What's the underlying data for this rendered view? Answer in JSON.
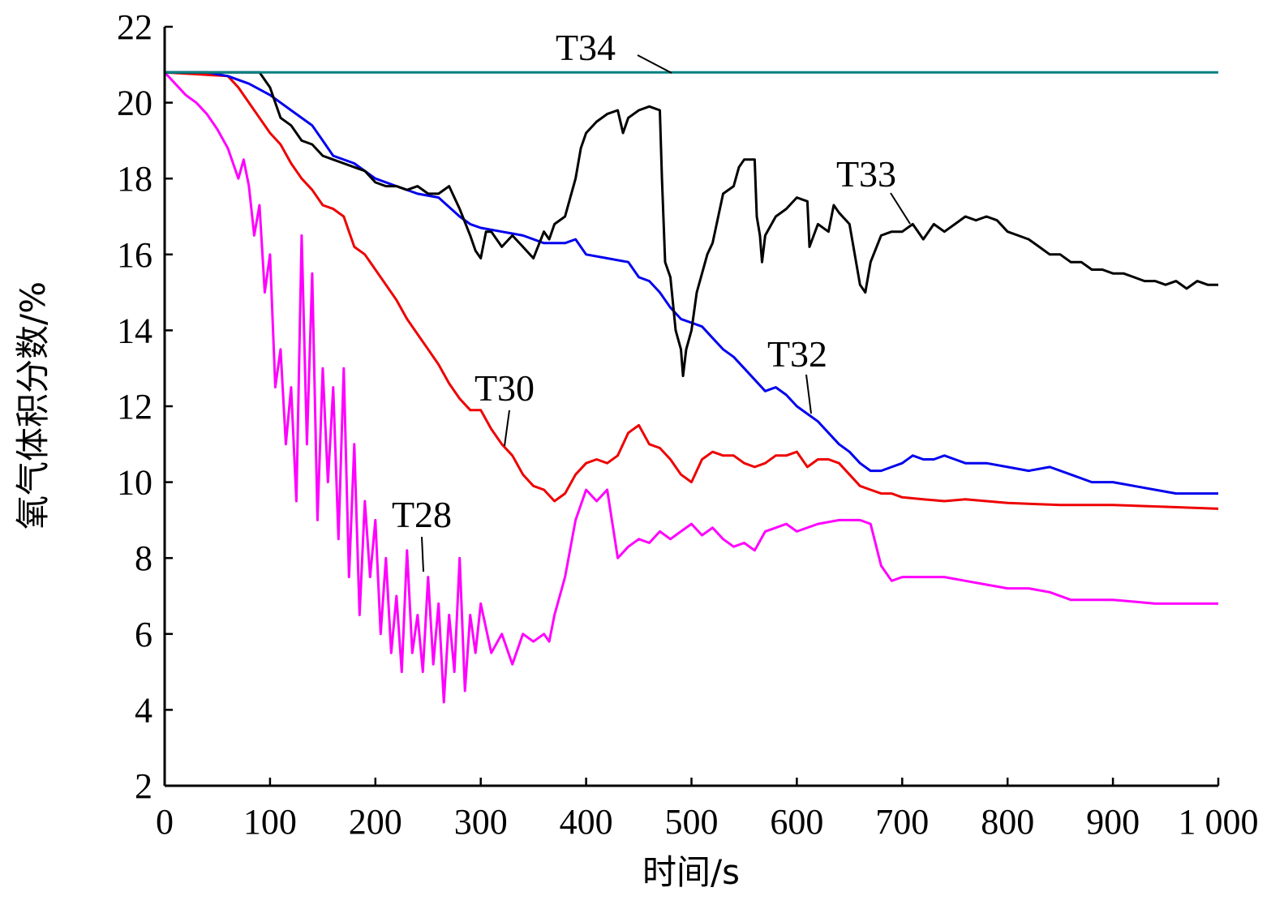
{
  "chart_data": {
    "type": "line",
    "title": "",
    "xlabel": "时间/s",
    "ylabel": "氧气体积分数/%",
    "xlim": [
      0,
      1000
    ],
    "ylim": [
      2,
      22
    ],
    "xticks": [
      0,
      100,
      200,
      300,
      400,
      500,
      600,
      700,
      800,
      900,
      1000
    ],
    "xtick_labels": [
      "0",
      "100",
      "200",
      "300",
      "400",
      "500",
      "600",
      "700",
      "800",
      "900",
      "1 000"
    ],
    "yticks": [
      2,
      4,
      6,
      8,
      10,
      12,
      14,
      16,
      18,
      20,
      22
    ],
    "ytick_labels": [
      "2",
      "4",
      "6",
      "8",
      "10",
      "12",
      "14",
      "16",
      "18",
      "20",
      "22"
    ],
    "grid": false,
    "legend": "none (inline labels)",
    "series": [
      {
        "name": "T34",
        "color": "#008080",
        "x": [
          0,
          1000
        ],
        "y": [
          20.8,
          20.8
        ]
      },
      {
        "name": "T33",
        "color": "#000000",
        "x": [
          0,
          90,
          100,
          110,
          120,
          130,
          140,
          150,
          160,
          170,
          180,
          190,
          200,
          210,
          220,
          230,
          240,
          250,
          260,
          270,
          280,
          290,
          295,
          300,
          305,
          310,
          320,
          330,
          340,
          350,
          360,
          365,
          370,
          380,
          390,
          395,
          400,
          410,
          420,
          430,
          435,
          440,
          450,
          460,
          470,
          472,
          475,
          480,
          485,
          490,
          492,
          495,
          500,
          505,
          510,
          515,
          520,
          530,
          540,
          545,
          550,
          560,
          562,
          565,
          567,
          570,
          580,
          590,
          600,
          610,
          612,
          620,
          630,
          635,
          640,
          650,
          655,
          660,
          665,
          670,
          680,
          690,
          700,
          710,
          720,
          730,
          740,
          750,
          760,
          770,
          780,
          790,
          800,
          810,
          820,
          830,
          840,
          850,
          860,
          870,
          880,
          890,
          900,
          910,
          920,
          930,
          940,
          950,
          960,
          970,
          980,
          990,
          1000
        ],
        "y": [
          20.8,
          20.8,
          20.4,
          19.6,
          19.4,
          19.0,
          18.9,
          18.6,
          18.5,
          18.4,
          18.3,
          18.2,
          17.9,
          17.8,
          17.8,
          17.7,
          17.8,
          17.6,
          17.6,
          17.8,
          17.2,
          16.5,
          16.1,
          15.9,
          16.6,
          16.6,
          16.2,
          16.5,
          16.2,
          15.9,
          16.6,
          16.4,
          16.8,
          17.0,
          18.0,
          18.8,
          19.2,
          19.5,
          19.7,
          19.8,
          19.2,
          19.6,
          19.8,
          19.9,
          19.8,
          18.0,
          15.8,
          15.4,
          14.0,
          13.5,
          12.8,
          13.5,
          14.0,
          15.0,
          15.5,
          16.0,
          16.3,
          17.6,
          17.8,
          18.3,
          18.5,
          18.5,
          17.0,
          16.5,
          15.8,
          16.5,
          17.0,
          17.2,
          17.5,
          17.4,
          16.2,
          16.8,
          16.6,
          17.3,
          17.1,
          16.8,
          16.0,
          15.2,
          15.0,
          15.8,
          16.5,
          16.6,
          16.6,
          16.8,
          16.4,
          16.8,
          16.6,
          16.8,
          17.0,
          16.9,
          17.0,
          16.9,
          16.6,
          16.5,
          16.4,
          16.2,
          16.0,
          16.0,
          15.8,
          15.8,
          15.6,
          15.6,
          15.5,
          15.5,
          15.4,
          15.3,
          15.3,
          15.2,
          15.3,
          15.1,
          15.3,
          15.2,
          15.2
        ]
      },
      {
        "name": "T32",
        "color": "#0000ee",
        "x": [
          0,
          40,
          60,
          80,
          100,
          120,
          140,
          150,
          160,
          180,
          190,
          200,
          220,
          240,
          260,
          280,
          290,
          300,
          320,
          340,
          360,
          380,
          390,
          400,
          420,
          440,
          450,
          460,
          470,
          480,
          490,
          500,
          510,
          520,
          530,
          540,
          550,
          560,
          570,
          580,
          590,
          600,
          610,
          620,
          630,
          640,
          650,
          660,
          670,
          680,
          690,
          700,
          710,
          720,
          730,
          740,
          750,
          760,
          780,
          800,
          820,
          840,
          860,
          880,
          900,
          920,
          940,
          960,
          980,
          1000
        ],
        "y": [
          20.8,
          20.8,
          20.7,
          20.5,
          20.2,
          19.8,
          19.4,
          19.0,
          18.6,
          18.4,
          18.2,
          18.0,
          17.8,
          17.6,
          17.5,
          17.0,
          16.8,
          16.7,
          16.6,
          16.5,
          16.3,
          16.3,
          16.4,
          16.0,
          15.9,
          15.8,
          15.4,
          15.3,
          15.0,
          14.6,
          14.3,
          14.2,
          14.1,
          13.8,
          13.5,
          13.3,
          13.0,
          12.7,
          12.4,
          12.5,
          12.3,
          12.0,
          11.8,
          11.6,
          11.3,
          11.0,
          10.8,
          10.5,
          10.3,
          10.3,
          10.4,
          10.5,
          10.7,
          10.6,
          10.6,
          10.7,
          10.6,
          10.5,
          10.5,
          10.4,
          10.3,
          10.4,
          10.2,
          10.0,
          10.0,
          9.9,
          9.8,
          9.7,
          9.7,
          9.7
        ]
      },
      {
        "name": "T30",
        "color": "#ee0000",
        "x": [
          0,
          60,
          70,
          80,
          90,
          100,
          110,
          120,
          130,
          140,
          150,
          160,
          170,
          180,
          190,
          200,
          210,
          220,
          230,
          240,
          250,
          260,
          270,
          280,
          290,
          300,
          310,
          320,
          330,
          340,
          350,
          360,
          370,
          380,
          390,
          400,
          410,
          420,
          430,
          440,
          450,
          460,
          470,
          480,
          490,
          500,
          510,
          520,
          530,
          540,
          550,
          560,
          570,
          580,
          590,
          600,
          610,
          620,
          630,
          640,
          650,
          660,
          670,
          680,
          690,
          700,
          720,
          740,
          760,
          780,
          800,
          850,
          900,
          950,
          1000
        ],
        "y": [
          20.8,
          20.7,
          20.4,
          20.0,
          19.6,
          19.2,
          18.9,
          18.4,
          18.0,
          17.7,
          17.3,
          17.2,
          17.0,
          16.2,
          16.0,
          15.6,
          15.2,
          14.8,
          14.3,
          13.9,
          13.5,
          13.1,
          12.6,
          12.2,
          11.9,
          11.9,
          11.4,
          11.0,
          10.7,
          10.2,
          9.9,
          9.8,
          9.5,
          9.7,
          10.2,
          10.5,
          10.6,
          10.5,
          10.7,
          11.3,
          11.5,
          11.0,
          10.9,
          10.6,
          10.2,
          10.0,
          10.6,
          10.8,
          10.7,
          10.7,
          10.5,
          10.4,
          10.5,
          10.7,
          10.7,
          10.8,
          10.4,
          10.6,
          10.6,
          10.5,
          10.2,
          9.9,
          9.8,
          9.7,
          9.7,
          9.6,
          9.55,
          9.5,
          9.55,
          9.5,
          9.45,
          9.4,
          9.4,
          9.35,
          9.3
        ]
      },
      {
        "name": "T28",
        "color": "#ff00ff",
        "x": [
          0,
          10,
          20,
          30,
          40,
          50,
          60,
          70,
          75,
          80,
          85,
          90,
          95,
          100,
          105,
          110,
          115,
          120,
          125,
          130,
          135,
          140,
          145,
          150,
          155,
          160,
          165,
          170,
          175,
          180,
          185,
          190,
          195,
          200,
          205,
          210,
          215,
          220,
          225,
          230,
          235,
          240,
          245,
          250,
          255,
          260,
          265,
          270,
          275,
          280,
          285,
          290,
          295,
          300,
          310,
          320,
          330,
          340,
          350,
          360,
          365,
          370,
          380,
          390,
          400,
          410,
          420,
          430,
          440,
          450,
          460,
          470,
          480,
          490,
          500,
          510,
          520,
          530,
          540,
          550,
          560,
          570,
          580,
          590,
          600,
          620,
          640,
          660,
          670,
          680,
          690,
          700,
          720,
          740,
          760,
          780,
          800,
          820,
          840,
          860,
          880,
          900,
          920,
          940,
          960,
          980,
          1000
        ],
        "y": [
          20.8,
          20.5,
          20.2,
          20.0,
          19.7,
          19.3,
          18.8,
          18.0,
          18.5,
          17.8,
          16.5,
          17.3,
          15.0,
          16.0,
          12.5,
          13.5,
          11.0,
          12.5,
          9.5,
          16.5,
          11.0,
          15.5,
          9.0,
          13.0,
          10.0,
          12.5,
          8.5,
          13.0,
          7.5,
          11.0,
          6.5,
          9.5,
          7.5,
          9.0,
          6.0,
          8.0,
          5.5,
          7.0,
          5.0,
          8.2,
          5.5,
          6.5,
          5.0,
          7.5,
          5.2,
          6.8,
          4.2,
          6.5,
          5.0,
          8.0,
          4.5,
          6.5,
          5.5,
          6.8,
          5.5,
          6.0,
          5.2,
          6.0,
          5.8,
          6.0,
          5.8,
          6.5,
          7.5,
          9.0,
          9.8,
          9.5,
          9.8,
          8.0,
          8.3,
          8.5,
          8.4,
          8.7,
          8.5,
          8.7,
          8.9,
          8.6,
          8.8,
          8.5,
          8.3,
          8.4,
          8.2,
          8.7,
          8.8,
          8.9,
          8.7,
          8.9,
          9.0,
          9.0,
          8.9,
          7.8,
          7.4,
          7.5,
          7.5,
          7.5,
          7.4,
          7.3,
          7.2,
          7.2,
          7.1,
          6.9,
          6.9,
          6.9,
          6.85,
          6.8,
          6.8,
          6.8,
          6.8
        ]
      }
    ],
    "annotations": [
      {
        "text": "T34",
        "series": "T34"
      },
      {
        "text": "T33",
        "series": "T33"
      },
      {
        "text": "T32",
        "series": "T32"
      },
      {
        "text": "T30",
        "series": "T30"
      },
      {
        "text": "T28",
        "series": "T28"
      }
    ]
  }
}
